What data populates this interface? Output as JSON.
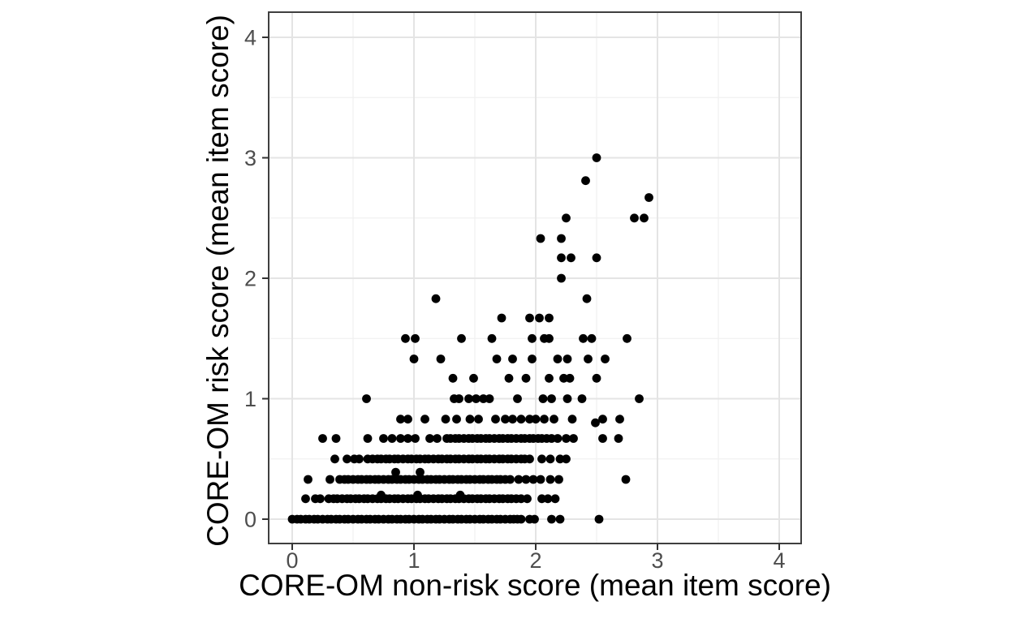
{
  "figure": {
    "background": "#ffffff"
  },
  "chart_data": {
    "type": "scatter",
    "title": "",
    "xlabel": "CORE-OM non-risk score (mean item score)",
    "ylabel": "CORE-OM risk score (mean item score)",
    "xlim": [
      -0.2,
      4.2
    ],
    "ylim": [
      -0.2,
      4.2
    ],
    "x_ticks": [
      0,
      1,
      2,
      3,
      4
    ],
    "y_ticks": [
      0,
      1,
      2,
      3,
      4
    ],
    "x_minor_ticks": [
      0.5,
      1.5,
      2.5,
      3.5
    ],
    "y_minor_ticks": [
      0.5,
      1.5,
      2.5,
      3.5
    ],
    "grid": "major+minor",
    "legend": "none",
    "point_color": "#000000",
    "colors": {
      "panel_background": "#ffffff",
      "grid_major": "#e4e4e4",
      "grid_minor": "#f1f1f1",
      "panel_border": "#3f3f3f",
      "tick_mark": "#333333",
      "tick_label": "#4d4d4d",
      "axis_title": "#000000",
      "point": "#000000"
    },
    "rows": [
      {
        "risk": 0.0,
        "nonrisk": [
          0.0,
          0.04,
          0.07,
          0.11,
          0.14,
          0.18,
          0.21,
          0.25,
          0.29,
          0.32,
          0.36,
          0.39,
          0.43,
          0.46,
          0.5,
          0.54,
          0.57,
          0.61,
          0.64,
          0.68,
          0.71,
          0.75,
          0.79,
          0.82,
          0.86,
          0.89,
          0.93,
          0.96,
          1.0,
          1.04,
          1.07,
          1.11,
          1.14,
          1.18,
          1.21,
          1.25,
          1.29,
          1.32,
          1.36,
          1.39,
          1.43,
          1.46,
          1.5,
          1.54,
          1.57,
          1.61,
          1.64,
          1.68,
          1.71,
          1.75,
          1.79,
          1.82,
          1.85,
          1.88,
          1.95,
          1.99,
          2.13,
          2.2,
          2.52
        ]
      },
      {
        "risk": 0.17,
        "nonrisk": [
          0.11,
          0.19,
          0.23,
          0.3,
          0.34,
          0.37,
          0.41,
          0.45,
          0.48,
          0.52,
          0.55,
          0.59,
          0.62,
          0.66,
          0.7,
          0.73,
          0.77,
          0.8,
          0.84,
          0.87,
          0.91,
          0.95,
          0.98,
          1.02,
          1.05,
          1.09,
          1.12,
          1.16,
          1.2,
          1.23,
          1.27,
          1.3,
          1.34,
          1.37,
          1.41,
          1.45,
          1.48,
          1.52,
          1.55,
          1.59,
          1.62,
          1.66,
          1.7,
          1.73,
          1.77,
          1.8,
          1.84,
          1.88,
          1.93,
          2.05,
          2.1,
          2.16
        ]
      },
      {
        "risk": 0.33,
        "nonrisk": [
          0.13,
          0.31,
          0.39,
          0.43,
          0.46,
          0.5,
          0.54,
          0.57,
          0.61,
          0.64,
          0.68,
          0.71,
          0.75,
          0.79,
          0.82,
          0.86,
          0.89,
          0.93,
          0.96,
          1.0,
          1.04,
          1.07,
          1.11,
          1.14,
          1.18,
          1.21,
          1.25,
          1.29,
          1.32,
          1.36,
          1.39,
          1.43,
          1.46,
          1.5,
          1.54,
          1.57,
          1.61,
          1.64,
          1.68,
          1.71,
          1.75,
          1.79,
          1.86,
          1.92,
          1.98,
          2.04,
          2.12,
          2.19,
          2.74
        ]
      },
      {
        "risk": 0.5,
        "nonrisk": [
          0.35,
          0.45,
          0.51,
          0.55,
          0.62,
          0.66,
          0.7,
          0.73,
          0.77,
          0.8,
          0.84,
          0.87,
          0.91,
          0.95,
          0.98,
          1.02,
          1.05,
          1.09,
          1.12,
          1.16,
          1.2,
          1.23,
          1.27,
          1.3,
          1.34,
          1.37,
          1.41,
          1.45,
          1.48,
          1.52,
          1.55,
          1.59,
          1.62,
          1.66,
          1.7,
          1.73,
          1.77,
          1.8,
          1.84,
          1.88,
          1.91,
          1.95,
          2.05,
          2.12,
          2.2,
          2.25
        ]
      },
      {
        "risk": 0.67,
        "nonrisk": [
          0.25,
          0.36,
          0.62,
          0.75,
          0.82,
          0.89,
          0.95,
          1.01,
          1.13,
          1.19,
          1.27,
          1.3,
          1.34,
          1.37,
          1.41,
          1.45,
          1.48,
          1.52,
          1.55,
          1.59,
          1.62,
          1.66,
          1.7,
          1.73,
          1.77,
          1.8,
          1.84,
          1.88,
          1.91,
          1.95,
          1.98,
          2.02,
          2.05,
          2.09,
          2.13,
          2.18,
          2.25,
          2.31,
          2.55,
          2.68
        ]
      },
      {
        "risk": 0.83,
        "nonrisk": [
          0.89,
          0.95,
          1.09,
          1.26,
          1.35,
          1.46,
          1.53,
          1.67,
          1.75,
          1.81,
          1.88,
          1.95,
          2.0,
          2.07,
          2.15,
          2.3,
          2.55,
          2.69
        ]
      },
      {
        "risk": 1.0,
        "nonrisk": [
          0.61,
          1.33,
          1.37,
          1.45,
          1.51,
          1.57,
          1.62,
          1.85,
          2.06,
          2.13,
          2.26,
          2.38,
          2.85
        ]
      },
      {
        "risk": 1.17,
        "nonrisk": [
          1.32,
          1.49,
          1.78,
          1.92,
          2.11,
          2.23,
          2.28,
          2.5
        ]
      },
      {
        "risk": 1.33,
        "nonrisk": [
          1.0,
          1.22,
          1.68,
          1.81,
          1.97,
          2.18,
          2.26,
          2.43,
          2.57
        ]
      },
      {
        "risk": 1.5,
        "nonrisk": [
          0.93,
          1.01,
          1.39,
          1.64,
          1.97,
          2.07,
          2.11,
          2.39,
          2.46,
          2.75
        ]
      },
      {
        "risk": 1.67,
        "nonrisk": [
          1.72,
          1.95,
          2.03,
          2.11
        ]
      },
      {
        "risk": 1.83,
        "nonrisk": [
          1.18,
          2.42
        ]
      },
      {
        "risk": 2.0,
        "nonrisk": [
          2.21
        ]
      },
      {
        "risk": 2.17,
        "nonrisk": [
          2.21,
          2.29,
          2.5
        ]
      },
      {
        "risk": 2.33,
        "nonrisk": [
          2.04,
          2.21
        ]
      },
      {
        "risk": 2.5,
        "nonrisk": [
          2.25,
          2.81,
          2.89
        ]
      },
      {
        "risk": 2.67,
        "nonrisk": [
          2.93
        ]
      },
      {
        "risk": 2.81,
        "nonrisk": [
          2.41
        ]
      },
      {
        "risk": 3.0,
        "nonrisk": [
          2.5
        ]
      }
    ],
    "extra_points": [
      [
        0.73,
        0.2
      ],
      [
        1.03,
        0.2
      ],
      [
        1.38,
        0.2
      ],
      [
        0.85,
        0.39
      ],
      [
        1.05,
        0.39
      ],
      [
        2.49,
        0.8
      ]
    ]
  }
}
